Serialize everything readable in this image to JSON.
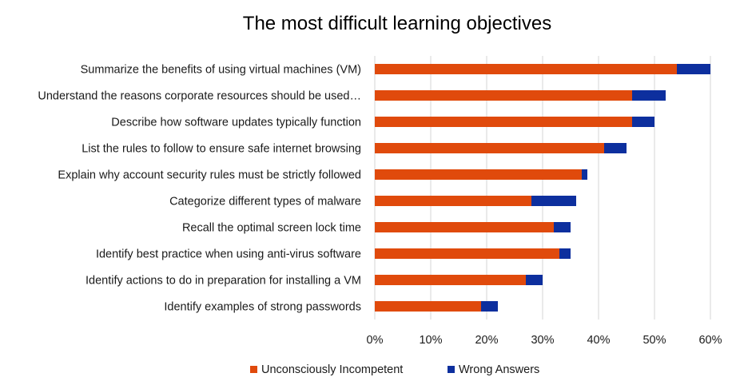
{
  "chart_data": {
    "type": "bar",
    "orientation": "horizontal",
    "stacked": true,
    "title": "The most difficult learning objectives",
    "xlabel": "",
    "ylabel": "",
    "xlim": [
      0,
      0.6
    ],
    "x_ticks": [
      "0%",
      "10%",
      "20%",
      "30%",
      "40%",
      "50%",
      "60%"
    ],
    "grid": true,
    "legend_position": "bottom",
    "categories": [
      "Summarize the benefits of using virtual machines (VM)",
      "Understand the reasons corporate resources should be used…",
      "Describe how software updates typically function",
      "List the rules to follow to ensure safe internet browsing",
      "Explain why account security rules must be strictly followed",
      "Categorize different types of malware",
      "Recall the optimal screen lock time",
      "Identify best practice when using anti-virus software",
      "Identify actions to do in preparation for installing a VM",
      "Identify examples of strong passwords"
    ],
    "series": [
      {
        "name": "Unconsciously Incompetent",
        "color": "#e04a0c",
        "values": [
          0.54,
          0.46,
          0.46,
          0.41,
          0.37,
          0.28,
          0.32,
          0.33,
          0.27,
          0.19
        ]
      },
      {
        "name": "Wrong Answers",
        "color": "#0d2f9e",
        "values": [
          0.06,
          0.06,
          0.04,
          0.04,
          0.01,
          0.08,
          0.03,
          0.02,
          0.03,
          0.03
        ]
      }
    ]
  }
}
